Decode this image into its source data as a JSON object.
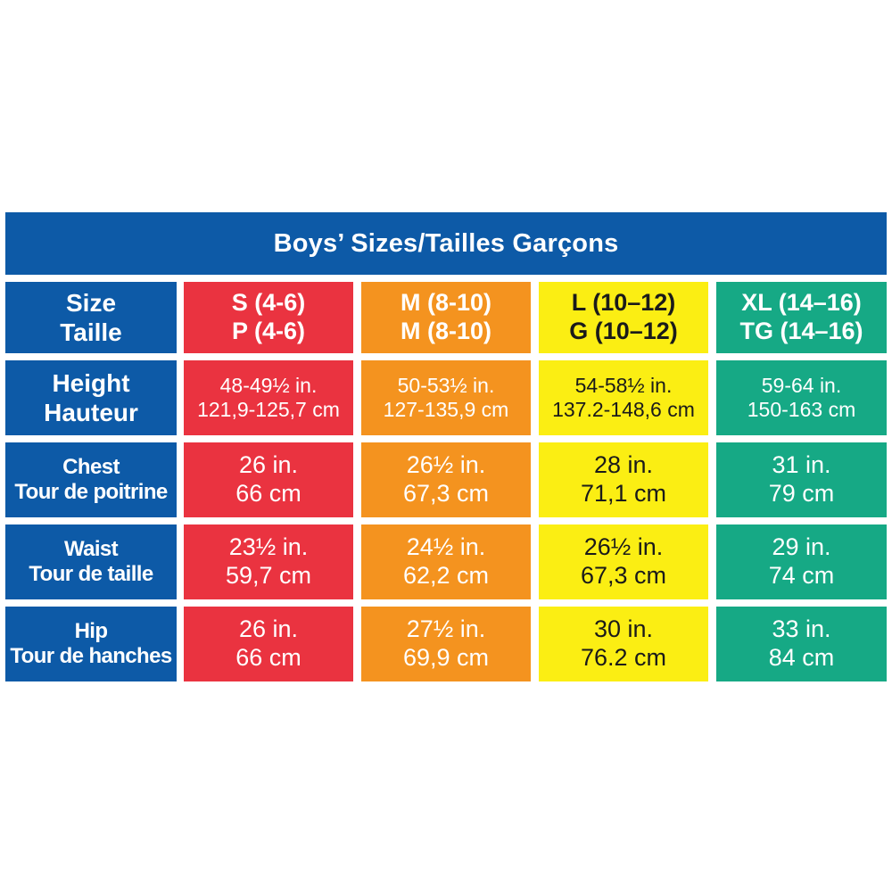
{
  "title": "Boys’ Sizes/Tailles Garçons",
  "colors": {
    "header_blue": "#0d5aa7",
    "red": "#ea3340",
    "orange": "#f4931f",
    "yellow": "#fbee13",
    "green": "#16a985"
  },
  "row_headers": [
    {
      "line1": "Size",
      "line2": "Taille"
    },
    {
      "line1": "Height",
      "line2": "Hauteur"
    },
    {
      "line1": "Chest",
      "line2": "Tour de poitrine"
    },
    {
      "line1": "Waist",
      "line2": "Tour de taille"
    },
    {
      "line1": "Hip",
      "line2": "Tour de hanches"
    }
  ],
  "columns": [
    {
      "color": "red",
      "size": {
        "line1": "S (4-6)",
        "line2": "P (4-6)"
      },
      "height": {
        "line1": "48-49½ in.",
        "line2": "121,9-125,7 cm"
      },
      "chest": {
        "line1": "26 in.",
        "line2": "66 cm"
      },
      "waist": {
        "line1": "23½ in.",
        "line2": "59,7 cm"
      },
      "hip": {
        "line1": "26 in.",
        "line2": "66 cm"
      }
    },
    {
      "color": "orange",
      "size": {
        "line1": "M (8-10)",
        "line2": "M (8-10)"
      },
      "height": {
        "line1": "50-53½ in.",
        "line2": "127-135,9 cm"
      },
      "chest": {
        "line1": "26½ in.",
        "line2": "67,3 cm"
      },
      "waist": {
        "line1": "24½ in.",
        "line2": "62,2 cm"
      },
      "hip": {
        "line1": "27½ in.",
        "line2": "69,9 cm"
      }
    },
    {
      "color": "yellow",
      "size": {
        "line1": "L (10–12)",
        "line2": "G (10–12)"
      },
      "height": {
        "line1": "54-58½ in.",
        "line2": "137.2-148,6 cm"
      },
      "chest": {
        "line1": "28 in.",
        "line2": "71,1 cm"
      },
      "waist": {
        "line1": "26½ in.",
        "line2": "67,3 cm"
      },
      "hip": {
        "line1": "30 in.",
        "line2": "76.2 cm"
      }
    },
    {
      "color": "green",
      "size": {
        "line1": "XL (14–16)",
        "line2": "TG (14–16)"
      },
      "height": {
        "line1": "59-64 in.",
        "line2": "150-163 cm"
      },
      "chest": {
        "line1": "31 in.",
        "line2": "79 cm"
      },
      "waist": {
        "line1": "29 in.",
        "line2": "74 cm"
      },
      "hip": {
        "line1": "33 in.",
        "line2": "84 cm"
      }
    }
  ]
}
